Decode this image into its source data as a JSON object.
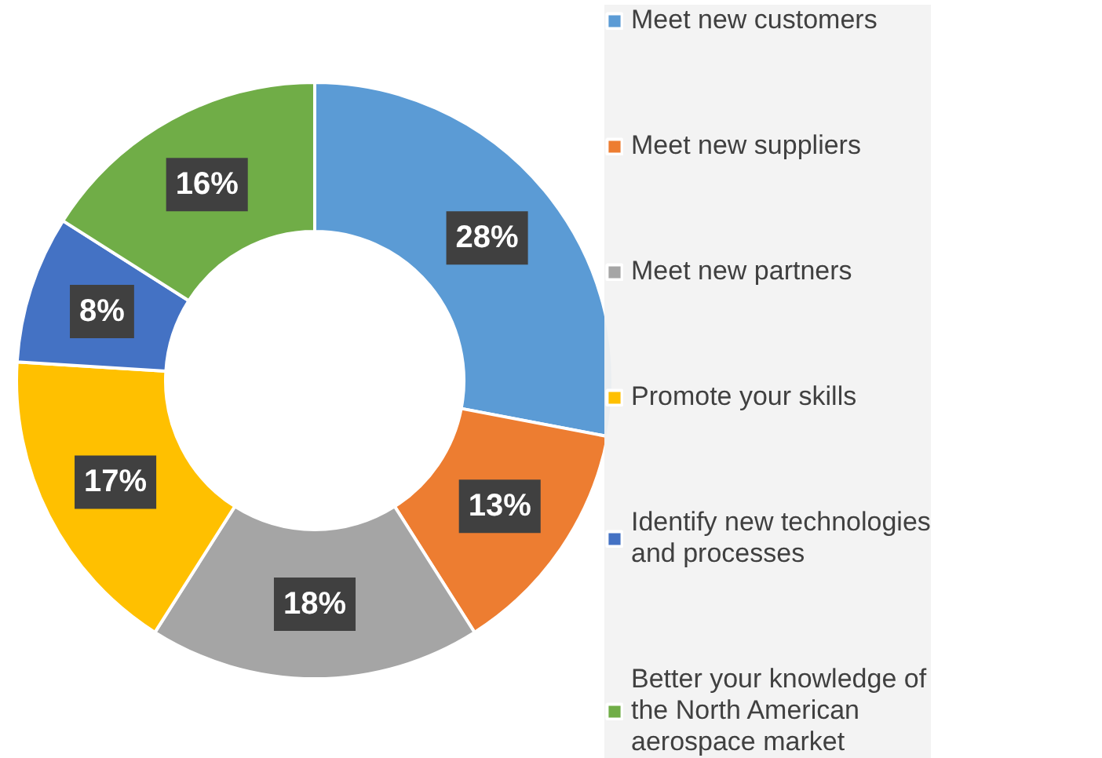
{
  "chart_data": {
    "type": "donut",
    "categories": [
      "Meet new customers",
      "Meet new suppliers",
      "Meet new partners",
      "Promote your skills",
      "Identify new technologies and processes",
      "Better your knowledge of the North American aerospace market"
    ],
    "values": [
      28,
      13,
      18,
      17,
      8,
      16
    ],
    "colors": [
      "#5b9bd5",
      "#ed7d31",
      "#a5a5a5",
      "#ffc000",
      "#4472c4",
      "#70ad47"
    ],
    "value_labels": [
      "28%",
      "13%",
      "18%",
      "17%",
      "8%",
      "16%"
    ],
    "legend": "right"
  }
}
